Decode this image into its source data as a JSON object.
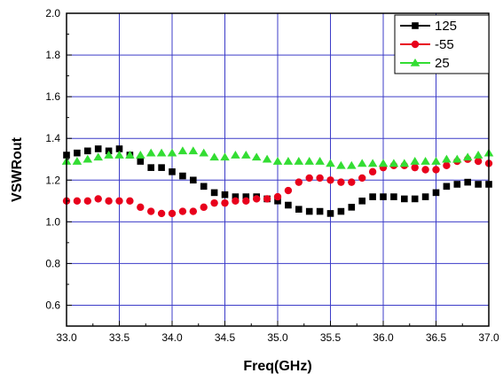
{
  "chart_data": {
    "type": "line",
    "xlabel": "Freq(GHz)",
    "ylabel": "VSWRout",
    "xlim": [
      33.0,
      37.0
    ],
    "ylim": [
      0.5,
      2.0
    ],
    "x_ticks": [
      "33.0",
      "33.5",
      "34.0",
      "34.5",
      "35.0",
      "35.5",
      "36.0",
      "36.5",
      "37.0"
    ],
    "y_ticks": [
      "0.6",
      "0.8",
      "1.0",
      "1.2",
      "1.4",
      "1.6",
      "1.8",
      "2.0"
    ],
    "grid": true,
    "grid_color": "#3c3cc8",
    "legend_position": "top-right",
    "x": [
      33.0,
      33.1,
      33.2,
      33.3,
      33.4,
      33.5,
      33.6,
      33.7,
      33.8,
      33.9,
      34.0,
      34.1,
      34.2,
      34.3,
      34.4,
      34.5,
      34.6,
      34.7,
      34.8,
      34.9,
      35.0,
      35.1,
      35.2,
      35.3,
      35.4,
      35.5,
      35.6,
      35.7,
      35.8,
      35.9,
      36.0,
      36.1,
      36.2,
      36.3,
      36.4,
      36.5,
      36.6,
      36.7,
      36.8,
      36.9,
      37.0
    ],
    "series": [
      {
        "name": "125",
        "marker": "square",
        "color": "#000000",
        "values": [
          1.32,
          1.33,
          1.34,
          1.35,
          1.34,
          1.35,
          1.32,
          1.29,
          1.26,
          1.26,
          1.24,
          1.22,
          1.2,
          1.17,
          1.14,
          1.13,
          1.12,
          1.12,
          1.12,
          1.11,
          1.1,
          1.08,
          1.06,
          1.05,
          1.05,
          1.04,
          1.05,
          1.07,
          1.1,
          1.12,
          1.12,
          1.12,
          1.11,
          1.11,
          1.12,
          1.14,
          1.17,
          1.18,
          1.19,
          1.18,
          1.18
        ]
      },
      {
        "name": "-55",
        "marker": "circle",
        "color": "#e8001c",
        "values": [
          1.1,
          1.1,
          1.1,
          1.11,
          1.1,
          1.1,
          1.1,
          1.07,
          1.05,
          1.04,
          1.04,
          1.05,
          1.05,
          1.07,
          1.09,
          1.09,
          1.1,
          1.1,
          1.11,
          1.11,
          1.12,
          1.15,
          1.19,
          1.21,
          1.21,
          1.2,
          1.19,
          1.19,
          1.21,
          1.24,
          1.26,
          1.27,
          1.27,
          1.26,
          1.25,
          1.25,
          1.27,
          1.29,
          1.3,
          1.29,
          1.28
        ]
      },
      {
        "name": "25",
        "marker": "triangle",
        "color": "#33dd33",
        "values": [
          1.29,
          1.29,
          1.3,
          1.31,
          1.32,
          1.32,
          1.32,
          1.32,
          1.33,
          1.33,
          1.33,
          1.34,
          1.34,
          1.33,
          1.31,
          1.31,
          1.32,
          1.32,
          1.31,
          1.3,
          1.29,
          1.29,
          1.29,
          1.29,
          1.29,
          1.28,
          1.27,
          1.27,
          1.28,
          1.28,
          1.28,
          1.28,
          1.28,
          1.29,
          1.29,
          1.29,
          1.3,
          1.3,
          1.31,
          1.32,
          1.33
        ]
      }
    ]
  }
}
